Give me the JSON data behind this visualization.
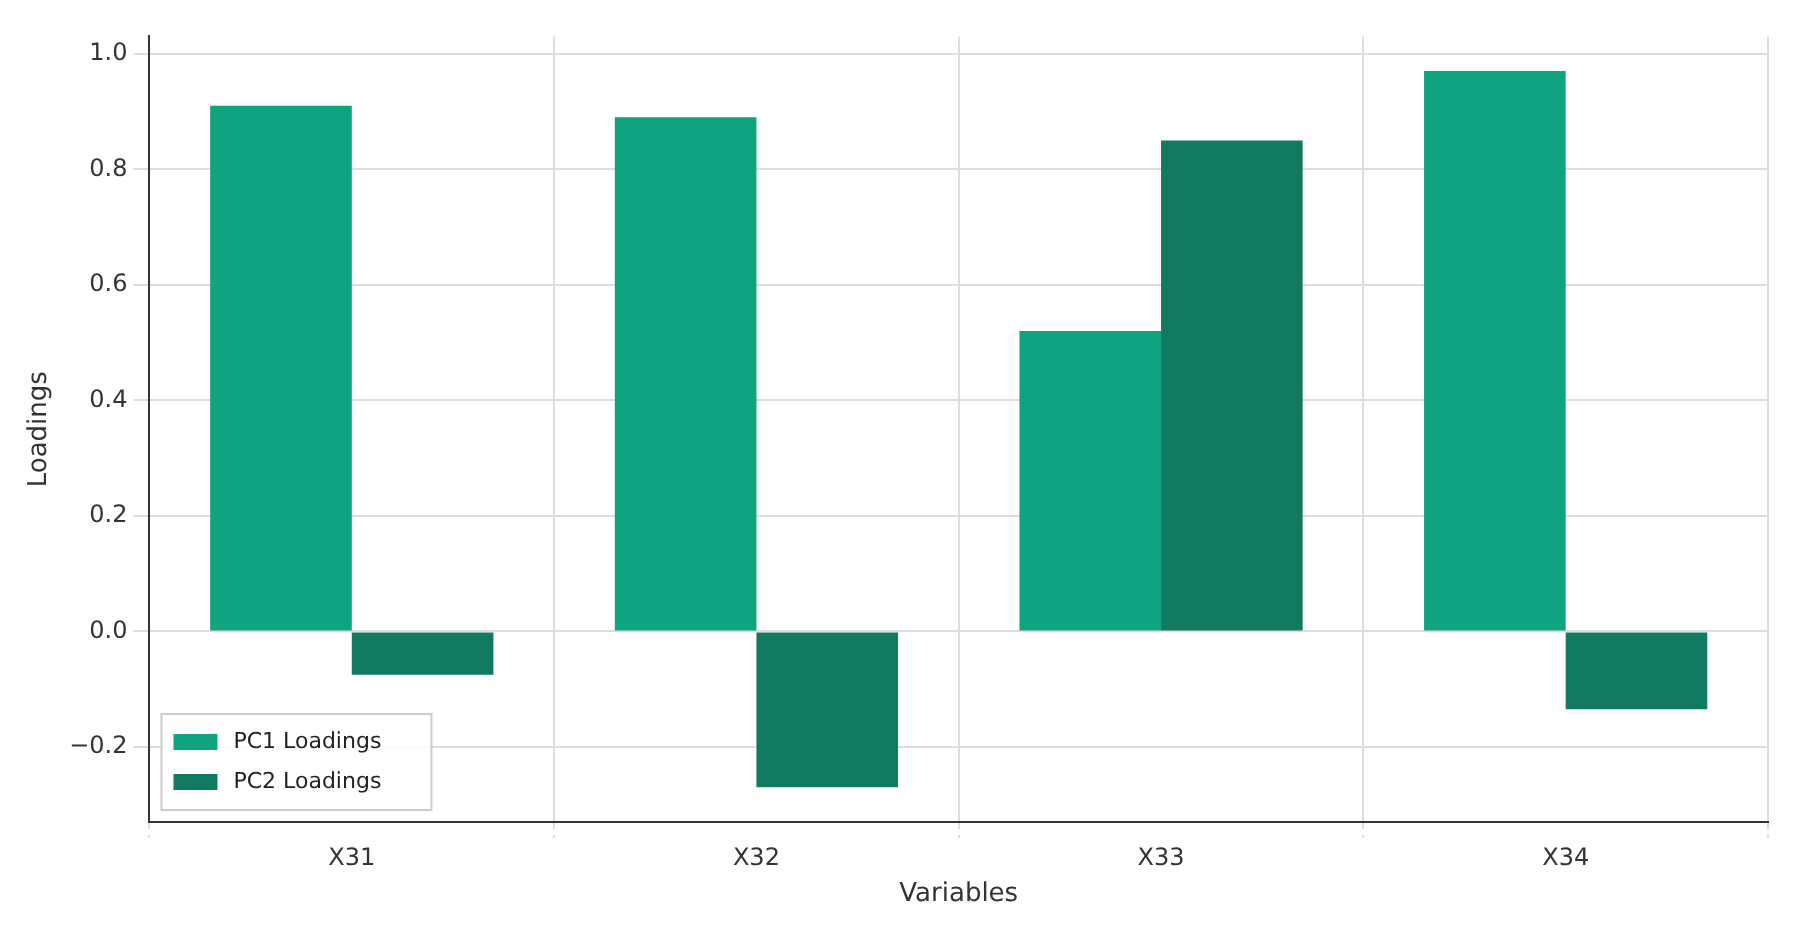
{
  "chart_data": {
    "type": "bar",
    "xlabel": "Variables",
    "ylabel": "Loadings",
    "categories": [
      "X31",
      "X32",
      "X33",
      "X34"
    ],
    "series": [
      {
        "name": "PC1 Loadings",
        "color": "#10a37f",
        "values": [
          0.91,
          0.89,
          0.52,
          0.97
        ]
      },
      {
        "name": "PC2 Loadings",
        "color": "#137a62",
        "values": [
          -0.075,
          -0.27,
          0.85,
          -0.135
        ]
      }
    ],
    "ylim": [
      -0.33,
      1.03
    ],
    "yticks": [
      {
        "value": -0.2,
        "label": "−0.2"
      },
      {
        "value": 0,
        "label": "0.0"
      },
      {
        "value": 0.2,
        "label": "0.2"
      },
      {
        "value": 0.4,
        "label": "0.4"
      },
      {
        "value": 0.6,
        "label": "0.6"
      },
      {
        "value": 0.8,
        "label": "0.8"
      },
      {
        "value": 1,
        "label": "1.0"
      }
    ],
    "grid": true,
    "legend": "bottom left"
  }
}
